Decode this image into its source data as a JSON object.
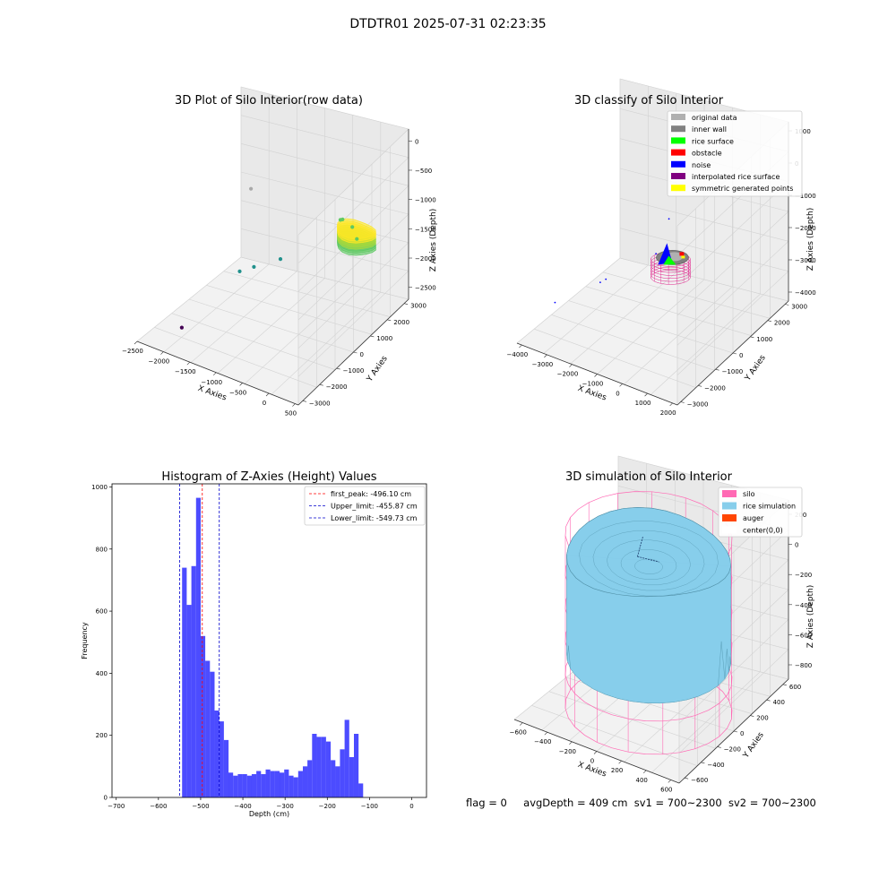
{
  "figure": {
    "suptitle": "DTDTR01 2025-07-31 02:23:35",
    "status_line": {
      "flag": "flag = 0",
      "avg_depth": "avgDepth = 409 cm",
      "sv1": "sv1 = 700~2300",
      "sv2": "sv2 = 700~2300"
    }
  },
  "chart_data": [
    {
      "type": "scatter",
      "projection": "3d",
      "title": "3D Plot of Silo Interior(row data)",
      "xlabel": "X Axies",
      "ylabel": "Y Axies",
      "zlabel": "Z Axies (Depth)",
      "x_ticks": [
        "−2500",
        "−2000",
        "−1500",
        "−1000",
        "−500",
        "0",
        "500"
      ],
      "y_ticks": [
        "−3000",
        "−2000",
        "−1000",
        "0",
        "1000",
        "2000",
        "3000"
      ],
      "z_ticks": [
        "0",
        "−500",
        "−1000",
        "−1500",
        "−2000",
        "−2500"
      ],
      "xlim": [
        -2500,
        500
      ],
      "ylim": [
        -3000,
        3000
      ],
      "zlim": [
        -2700,
        200
      ],
      "colormap": [
        "#440154",
        "#3b528b",
        "#21918c",
        "#5ec962",
        "#fde725"
      ],
      "points": [
        {
          "x": 150,
          "y": 1200,
          "z": -800
        },
        {
          "x": 300,
          "y": 1000,
          "z": -900
        },
        {
          "x": 0,
          "y": 1100,
          "z": -700
        },
        {
          "x": -200,
          "y": 1600,
          "z": -900
        },
        {
          "x": -800,
          "y": 0,
          "z": -1400
        },
        {
          "x": -1100,
          "y": -600,
          "z": -1500
        },
        {
          "x": -1300,
          "y": -800,
          "z": -1600
        },
        {
          "x": -1800,
          "y": 1400,
          "z": -900
        },
        {
          "x": -1700,
          "y": -2900,
          "z": -2200
        }
      ]
    },
    {
      "type": "scatter",
      "projection": "3d",
      "title": "3D classify of Silo Interior",
      "xlabel": "X Axies",
      "ylabel": "Y Axies",
      "zlabel": "Z Axies (Depth)",
      "x_ticks": [
        "−4000",
        "−3000",
        "−2000",
        "−1000",
        "0",
        "1000",
        "2000"
      ],
      "y_ticks": [
        "−3000",
        "−2000",
        "−1000",
        "0",
        "1000",
        "2000",
        "3000"
      ],
      "z_ticks": [
        "1000",
        "0",
        "−1000",
        "−2000",
        "−3000",
        "−4000"
      ],
      "xlim": [
        -4200,
        2400
      ],
      "ylim": [
        -3200,
        3200
      ],
      "zlim": [
        -4500,
        1500
      ],
      "legend": {
        "position": "upper right",
        "entries": [
          {
            "label": "original data",
            "color": "#b0b0b0"
          },
          {
            "label": "inner wall",
            "color": "#808080"
          },
          {
            "label": "rice surface",
            "color": "#00ff00"
          },
          {
            "label": "obstacle",
            "color": "#ff0000"
          },
          {
            "label": "noise",
            "color": "#0000ff"
          },
          {
            "label": "interpolated rice surface",
            "color": "#800080"
          },
          {
            "label": "symmetric generated points",
            "color": "#ffff00"
          }
        ]
      }
    },
    {
      "type": "bar",
      "title": "Histogram of Z-Axies (Height) Values",
      "xlabel": "Depth (cm)",
      "ylabel": "Frequency",
      "xlim": [
        -710,
        35
      ],
      "ylim": [
        0,
        1010
      ],
      "x_ticks": [
        -700,
        -600,
        -500,
        -400,
        -300,
        -200,
        -100,
        0
      ],
      "y_ticks": [
        0,
        200,
        400,
        600,
        800,
        1000
      ],
      "bin_start": -555,
      "bin_width": 11,
      "bar_color": "#0000ff",
      "values": [
        0,
        740,
        620,
        745,
        965,
        520,
        440,
        405,
        280,
        245,
        185,
        80,
        70,
        75,
        75,
        70,
        75,
        85,
        75,
        90,
        85,
        85,
        80,
        90,
        70,
        65,
        85,
        100,
        120,
        205,
        195,
        195,
        180,
        120,
        100,
        155,
        250,
        130,
        205,
        45
      ],
      "vlines": [
        {
          "x": -496.1,
          "label": "first_peak: -496.10 cm",
          "color": "#ff0000"
        },
        {
          "x": -455.87,
          "label": "Upper_limit: -455.87 cm",
          "color": "#0000cc"
        },
        {
          "x": -549.73,
          "label": "Lower_limit: -549.73 cm",
          "color": "#0000cc"
        }
      ]
    },
    {
      "type": "surface",
      "projection": "3d",
      "title": "3D simulation of Silo Interior",
      "xlabel": "X Axies",
      "ylabel": "Y Axies",
      "zlabel": "Z Axies (Depth)",
      "x_ticks": [
        "−600",
        "−400",
        "−200",
        "0",
        "200",
        "400",
        "600"
      ],
      "y_ticks": [
        "−600",
        "−400",
        "−200",
        "0",
        "200",
        "400",
        "600"
      ],
      "z_ticks": [
        "200",
        "0",
        "−200",
        "−400",
        "−600",
        "−800"
      ],
      "xlim": [
        -700,
        700
      ],
      "ylim": [
        -700,
        700
      ],
      "zlim": [
        -1000,
        350
      ],
      "legend": {
        "position": "upper right",
        "entries": [
          {
            "label": "silo",
            "color": "#ff69b4"
          },
          {
            "label": "rice simulation",
            "color": "#87ceeb"
          },
          {
            "label": "auger",
            "color": "#ff4500"
          },
          {
            "label": "center(0,0)",
            "color": "#ffffff"
          }
        ]
      }
    }
  ]
}
